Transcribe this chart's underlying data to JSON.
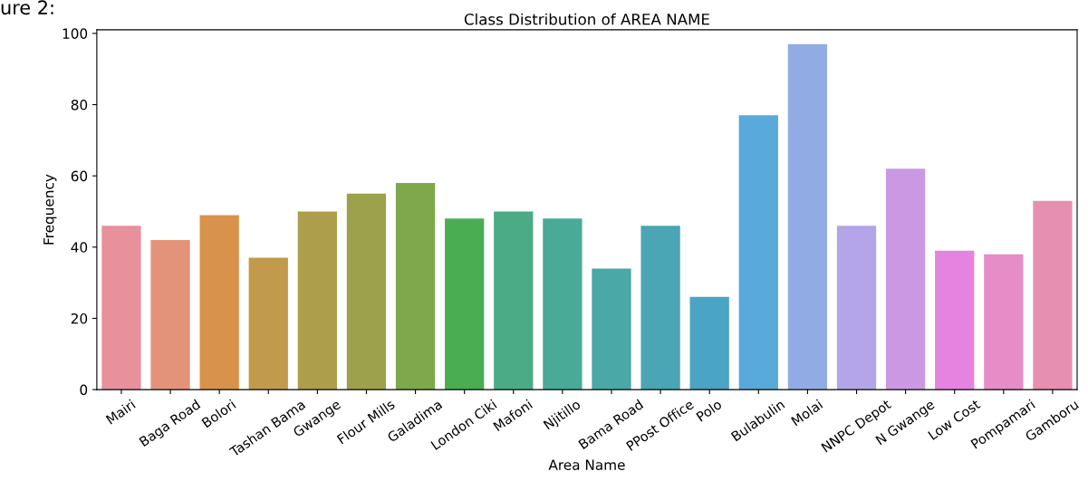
{
  "chart_data": {
    "type": "bar",
    "title": "Class Distribution of AREA NAME",
    "xlabel": "Area Name",
    "ylabel": "Frequency",
    "annotations": [
      "ure 2:"
    ],
    "categories": [
      "Mairi",
      "Baga Road",
      "Bolori",
      "Tashan Bama",
      "Gwange",
      "Flour Mills",
      "Galadima",
      "London Ciki",
      "Mafoni",
      "Njitillo",
      "Bama Road",
      "PPost Office",
      "Polo",
      "Bulabulin",
      "Molai",
      "NNPC Depot",
      "N Gwange",
      "Low Cost",
      "Pompamari",
      "Gamboru"
    ],
    "values": [
      46,
      42,
      49,
      37,
      50,
      55,
      58,
      48,
      50,
      48,
      34,
      46,
      26,
      77,
      97,
      46,
      62,
      39,
      38,
      53
    ],
    "colors": [
      "#e8909c",
      "#e3937a",
      "#d9924c",
      "#c19a4c",
      "#ad9e4b",
      "#9ba24b",
      "#7ea84c",
      "#4aad52",
      "#4aab86",
      "#49aa97",
      "#4aa8a6",
      "#4aa6b4",
      "#4aa4c3",
      "#59aadb",
      "#91acE5",
      "#b3a5e8",
      "#cb99e3",
      "#e583e0",
      "#e68cc7",
      "#e68fb1"
    ],
    "ylim": [
      0,
      101
    ],
    "yticks": [
      0,
      20,
      40,
      60,
      80,
      100
    ],
    "grid": false
  }
}
